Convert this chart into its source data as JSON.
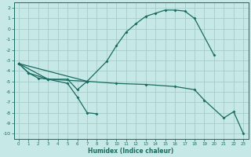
{
  "xlabel": "Humidex (Indice chaleur)",
  "xlim": [
    -0.5,
    23.5
  ],
  "ylim": [
    -10.5,
    2.5
  ],
  "xticks": [
    0,
    1,
    2,
    3,
    4,
    5,
    6,
    7,
    8,
    9,
    10,
    11,
    12,
    13,
    14,
    15,
    16,
    17,
    18,
    19,
    20,
    21,
    22,
    23
  ],
  "yticks": [
    2,
    1,
    0,
    -1,
    -2,
    -3,
    -4,
    -5,
    -6,
    -7,
    -8,
    -9,
    -10
  ],
  "bg_color": "#c6e8e6",
  "grid_color": "#9ec8c6",
  "line_color": "#1a6b60",
  "line1_x": [
    0,
    1,
    3,
    7,
    9,
    10,
    11,
    12,
    13,
    14,
    15,
    16,
    17,
    18,
    20
  ],
  "line1_y": [
    -3.3,
    -4.2,
    -4.8,
    -5.0,
    -3.1,
    -1.6,
    -0.3,
    0.5,
    1.2,
    1.5,
    1.8,
    1.8,
    1.7,
    1.0,
    -2.5
  ],
  "line2_x": [
    0,
    1,
    2,
    3,
    5,
    6,
    7
  ],
  "line2_y": [
    -3.3,
    -4.2,
    -4.7,
    -4.8,
    -4.8,
    -5.8,
    -5.0
  ],
  "line3_x": [
    0,
    3,
    5,
    6,
    7,
    8
  ],
  "line3_y": [
    -3.3,
    -4.8,
    -5.2,
    -6.5,
    -8.0,
    -8.1
  ],
  "line4_x": [
    0,
    7,
    10,
    13,
    16,
    18,
    19,
    21,
    22,
    23
  ],
  "line4_y": [
    -3.3,
    -5.0,
    -5.2,
    -5.3,
    -5.5,
    -5.8,
    -6.8,
    -8.5,
    -7.9,
    -10.0
  ]
}
